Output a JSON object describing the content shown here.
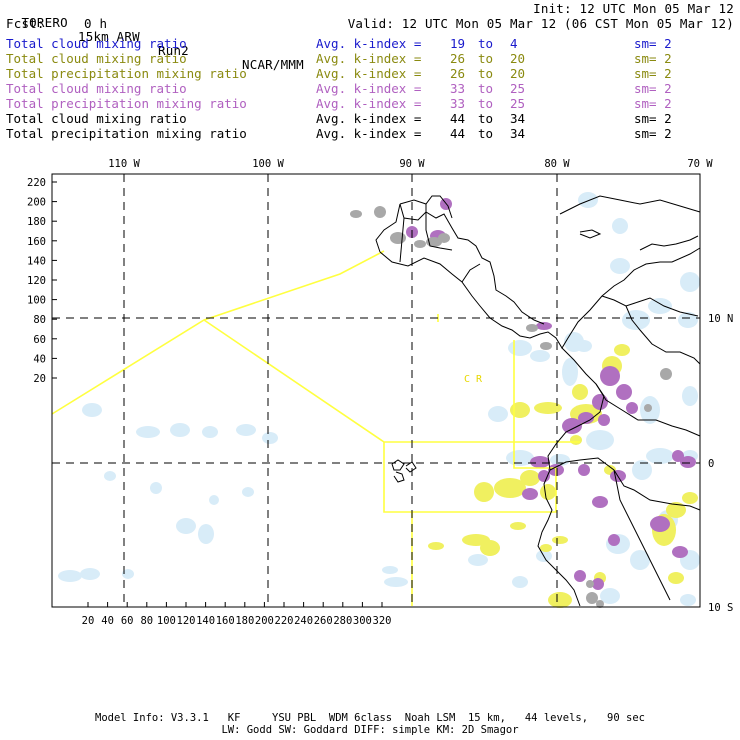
{
  "header": {
    "model": "TORERO",
    "resolution": "15km ARW",
    "run": "Run2",
    "org": "NCAR/MMM",
    "init": "Init: 12 UTC Mon 05 Mar 12",
    "fcst_label": "Fcst:",
    "fcst_value": "0 h",
    "valid": "Valid: 12 UTC Mon 05 Mar 12 (06 CST Mon 05 Mar 12)"
  },
  "legend": [
    {
      "field": "Total cloud mixing ratio",
      "index": "Avg. k-index =",
      "from": "19",
      "to_label": "to",
      "to": "4",
      "sm": "sm= 2",
      "color": "#1a1acc"
    },
    {
      "field": "Total cloud mixing ratio",
      "index": "Avg. k-index =",
      "from": "26",
      "to_label": "to",
      "to": "20",
      "sm": "sm= 2",
      "color": "#8a8a10"
    },
    {
      "field": "Total precipitation mixing ratio",
      "index": "Avg. k-index =",
      "from": "26",
      "to_label": "to",
      "to": "20",
      "sm": "sm= 2",
      "color": "#8a8a10"
    },
    {
      "field": "Total cloud mixing ratio",
      "index": "Avg. k-index =",
      "from": "33",
      "to_label": "to",
      "to": "25",
      "sm": "sm= 2",
      "color": "#b060c0"
    },
    {
      "field": "Total precipitation mixing ratio",
      "index": "Avg. k-index =",
      "from": "33",
      "to_label": "to",
      "to": "25",
      "sm": "sm= 2",
      "color": "#b060c0"
    },
    {
      "field": "Total cloud mixing ratio",
      "index": "Avg. k-index =",
      "from": "44",
      "to_label": "to",
      "to": "34",
      "sm": "sm= 2",
      "color": "#000000"
    },
    {
      "field": "Total precipitation mixing ratio",
      "index": "Avg. k-index =",
      "from": "44",
      "to_label": "to",
      "to": "34",
      "sm": "sm= 2",
      "color": "#000000"
    }
  ],
  "map": {
    "top_labels": [
      "110 W",
      "100 W",
      "90 W",
      "80 W",
      "70 W"
    ],
    "right_labels": [
      "10 N",
      "0",
      "10 S"
    ],
    "left_ticks": [
      "220",
      "200",
      "180",
      "160",
      "140",
      "120",
      "100",
      "80",
      "60",
      "40",
      "20"
    ],
    "bottom_ticks": [
      "20",
      "40",
      "60",
      "80",
      "100",
      "120",
      "140",
      "160",
      "180",
      "200",
      "220",
      "240",
      "260",
      "280",
      "300",
      "320"
    ],
    "region_labels": [
      "C R"
    ],
    "colors": {
      "land": "#000000",
      "grid": "#000000",
      "domain_box": "#ffff40",
      "cloud_low": "#d8ecf8",
      "cloud_mid": "#f0f060",
      "cloud_high": "#b070c0",
      "precip_grey": "#a8a8a8"
    }
  },
  "footer": {
    "line1": "Model Info: V3.3.1   KF     YSU PBL  WDM 6class  Noah LSM  15 km,   44 levels,   90 sec",
    "line2": "LW: Godd SW: Goddard DIFF: simple KM: 2D Smagor"
  }
}
